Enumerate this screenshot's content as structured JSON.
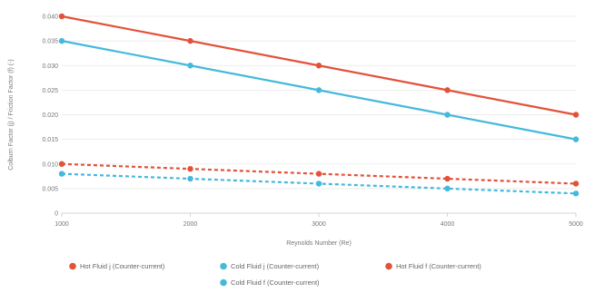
{
  "chart_data": {
    "type": "line",
    "title": "",
    "xlabel": "Reynolds Number (Re)",
    "ylabel": "Colburn Factor (j) / Friction Factor (f) (-)",
    "x": [
      1000,
      2000,
      3000,
      4000,
      5000
    ],
    "x_tick_labels": [
      "1000",
      "2000",
      "3000",
      "4000",
      "5000"
    ],
    "ylim": [
      0,
      0.04
    ],
    "y_ticks": [
      0,
      0.005,
      0.01,
      0.015,
      0.02,
      0.025,
      0.03,
      0.035,
      0.04
    ],
    "y_tick_labels": [
      "0",
      "0.005",
      "0.010",
      "0.015",
      "0.020",
      "0.025",
      "0.030",
      "0.035",
      "0.040"
    ],
    "grid": "horizontal",
    "legend_position": "bottom",
    "series": [
      {
        "name": "Hot Fluid j (Counter-current)",
        "values": [
          0.04,
          0.035,
          0.03,
          0.025,
          0.02
        ],
        "color": "#e2523a",
        "style": "solid"
      },
      {
        "name": "Cold Fluid j (Counter-current)",
        "values": [
          0.035,
          0.03,
          0.025,
          0.02,
          0.015
        ],
        "color": "#45b9dc",
        "style": "solid"
      },
      {
        "name": "Hot Fluid f (Counter-current)",
        "values": [
          0.01,
          0.009,
          0.008,
          0.007,
          0.006
        ],
        "color": "#e2523a",
        "style": "dashed"
      },
      {
        "name": "Cold Fluid f (Counter-current)",
        "values": [
          0.008,
          0.007,
          0.006,
          0.005,
          0.004
        ],
        "color": "#45b9dc",
        "style": "dashed"
      }
    ]
  }
}
